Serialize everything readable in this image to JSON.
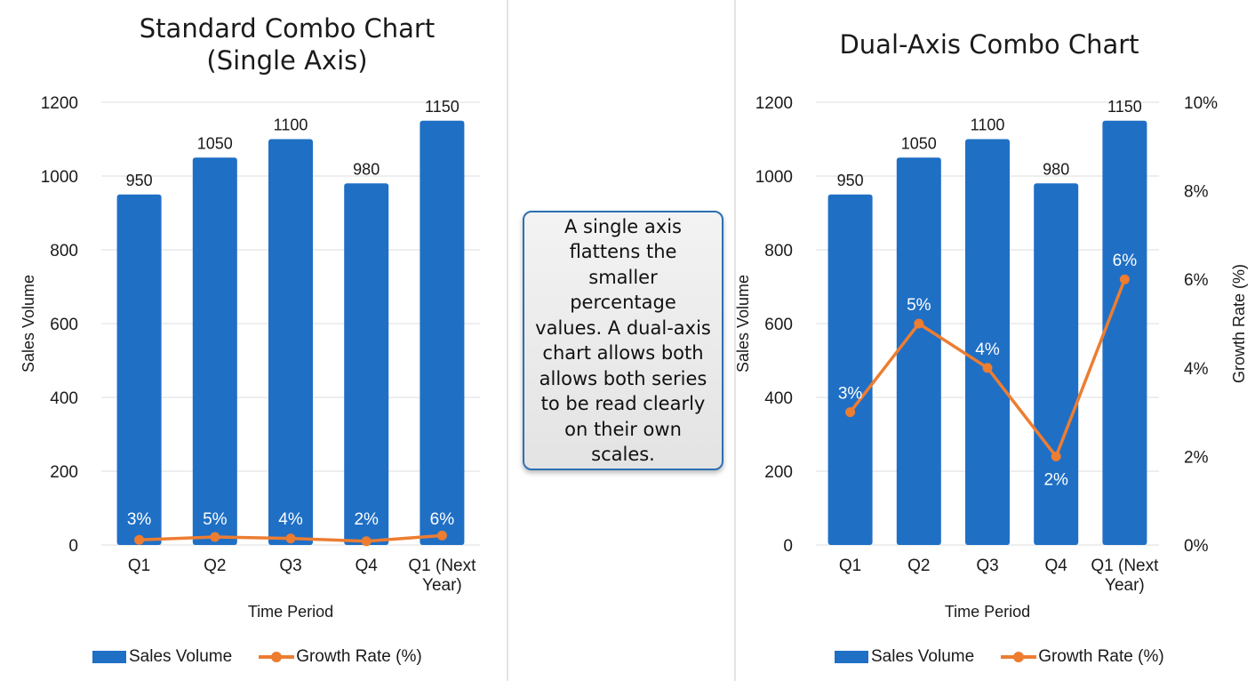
{
  "colors": {
    "bar": "#1f6fc5",
    "line": "#ed7d31",
    "grid": "#dcdcdc",
    "axis_text": "#1a1a1a"
  },
  "note": "A single axis flattens the smaller percentage values. A dual-axis chart allows both allows both series to be read clearly on their own scales.",
  "chart_data": [
    {
      "type": "bar",
      "title": "Standard Combo Chart (Single Axis)",
      "title_lines": [
        "Standard Combo Chart",
        "(Single Axis)"
      ],
      "categories": [
        "Q1",
        "Q2",
        "Q3",
        "Q4",
        "Q1 (Next Year)"
      ],
      "category_lines": [
        [
          "Q1"
        ],
        [
          "Q2"
        ],
        [
          "Q3"
        ],
        [
          "Q4"
        ],
        [
          "Q1 (Next",
          "Year)"
        ]
      ],
      "xlabel": "Time Period",
      "ylabel": "Sales Volume",
      "ylim": [
        0,
        1200
      ],
      "yticks": [
        0,
        200,
        400,
        600,
        800,
        1000,
        1200
      ],
      "grid": true,
      "legend_position": "bottom",
      "series": [
        {
          "name": "Sales Volume",
          "type": "bar",
          "axis": "left",
          "values": [
            950,
            1050,
            1100,
            980,
            1150
          ],
          "labels": [
            "950",
            "1050",
            "1100",
            "980",
            "1150"
          ]
        },
        {
          "name": "Growth Rate (%)",
          "type": "line",
          "axis": "left",
          "values": [
            3,
            5,
            4,
            2,
            6
          ],
          "labels": [
            "3%",
            "5%",
            "4%",
            "2%",
            "6%"
          ]
        }
      ]
    },
    {
      "type": "bar",
      "title": "Dual-Axis Combo Chart",
      "title_lines": [
        "Dual-Axis Combo Chart"
      ],
      "categories": [
        "Q1",
        "Q2",
        "Q3",
        "Q4",
        "Q1 (Next Year)"
      ],
      "category_lines": [
        [
          "Q1"
        ],
        [
          "Q2"
        ],
        [
          "Q3"
        ],
        [
          "Q4"
        ],
        [
          "Q1 (Next",
          "Year)"
        ]
      ],
      "xlabel": "Time Period",
      "ylabel": "Sales Volume",
      "ylabel_right": "Growth Rate (%)",
      "ylim": [
        0,
        1200
      ],
      "yticks": [
        0,
        200,
        400,
        600,
        800,
        1000,
        1200
      ],
      "ylim_right": [
        0,
        10
      ],
      "yticks_right": [
        "0%",
        "2%",
        "4%",
        "6%",
        "8%",
        "10%"
      ],
      "grid": true,
      "legend_position": "bottom",
      "series": [
        {
          "name": "Sales Volume",
          "type": "bar",
          "axis": "left",
          "values": [
            950,
            1050,
            1100,
            980,
            1150
          ],
          "labels": [
            "950",
            "1050",
            "1100",
            "980",
            "1150"
          ]
        },
        {
          "name": "Growth Rate (%)",
          "type": "line",
          "axis": "right",
          "values": [
            3,
            5,
            4,
            2,
            6
          ],
          "labels": [
            "3%",
            "5%",
            "4%",
            "2%",
            "6%"
          ]
        }
      ]
    }
  ]
}
